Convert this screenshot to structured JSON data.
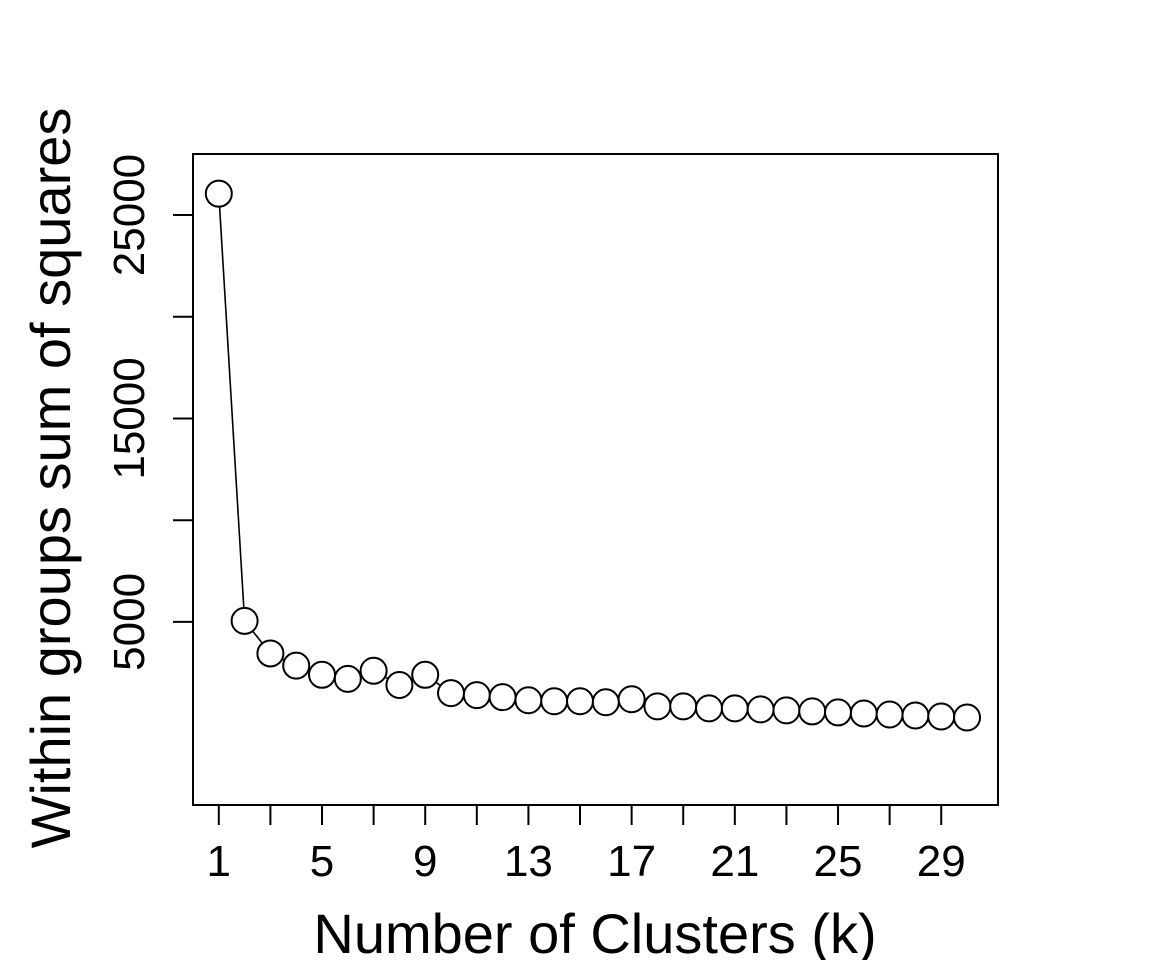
{
  "chart_data": {
    "type": "line",
    "title": "",
    "xlabel": "Number of Clusters (k)",
    "ylabel": "Within groups sum of squares",
    "xlim": [
      0,
      31.2
    ],
    "ylim": [
      -4000,
      28000
    ],
    "x_ticks_major": [
      1,
      5,
      9,
      13,
      17,
      21,
      25,
      29
    ],
    "x_ticks_minor": [
      3,
      7,
      11,
      15,
      19,
      23,
      27
    ],
    "y_ticks_labeled": [
      5000,
      15000,
      25000
    ],
    "y_ticks_unlabeled": [
      10000,
      20000
    ],
    "grid": false,
    "marker": "open-circle",
    "x": [
      1,
      2,
      3,
      4,
      5,
      6,
      7,
      8,
      9,
      10,
      11,
      12,
      13,
      14,
      15,
      16,
      17,
      18,
      19,
      20,
      21,
      22,
      23,
      24,
      25,
      26,
      27,
      28,
      29,
      30
    ],
    "y": [
      26050,
      5050,
      3450,
      2850,
      2400,
      2200,
      2600,
      1900,
      2400,
      1500,
      1400,
      1300,
      1150,
      1100,
      1100,
      1050,
      1200,
      850,
      850,
      750,
      750,
      700,
      650,
      600,
      550,
      500,
      450,
      400,
      350,
      300
    ]
  }
}
